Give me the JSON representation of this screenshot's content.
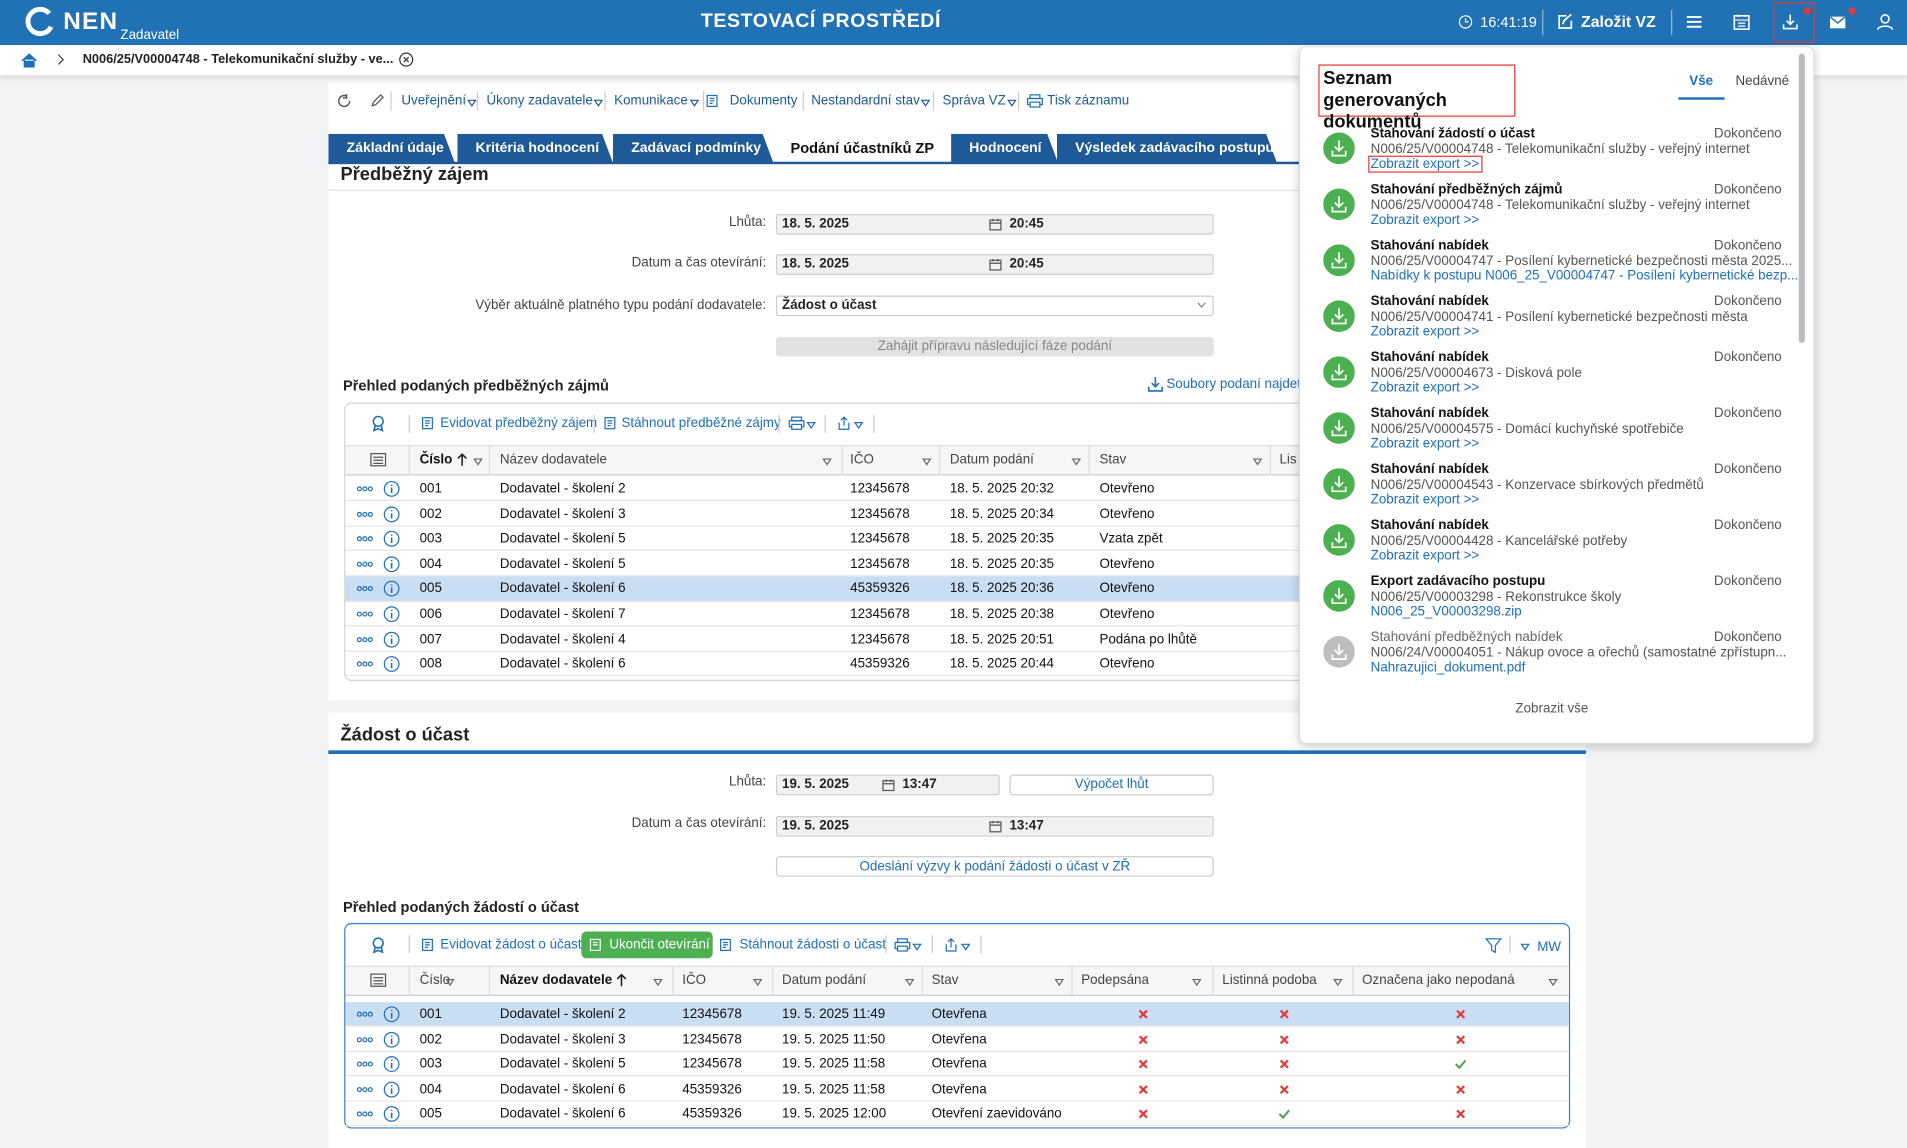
{
  "header": {
    "logo": "NEN",
    "role": "Zadavatel",
    "environment": "TESTOVACÍ PROSTŘEDÍ",
    "time": "16:41:19",
    "create": "Založit VZ"
  },
  "breadcrumb": {
    "item": "N006/25/V00004748 - Telekomunikační služby - ve..."
  },
  "toolbar": [
    "Uveřejnění",
    "Úkony zadavatele",
    "Komunikace",
    "Dokumenty",
    "Nestandardní stav",
    "Správa VZ",
    "Tisk záznamu"
  ],
  "tabs": {
    "items": [
      "Základní údaje",
      "Kritéria hodnocení",
      "Zadávací podmínky",
      "Podání účastníků ZP",
      "Hodnocení",
      "Výsledek zadávacího postupu"
    ],
    "active": 3
  },
  "section1": {
    "title": "Předběžný zájem",
    "fields": [
      {
        "label": "Lhůta:",
        "date": "18. 5. 2025",
        "time": "20:45"
      },
      {
        "label": "Datum a čas otevírání:",
        "date": "18. 5. 2025",
        "time": "20:45"
      }
    ],
    "select_label": "Výběr aktuálně platného typu podání dodavatele:",
    "select_value": "Žádost o účast",
    "button": "Zahájit přípravu následující fáze podání",
    "overview_title": "Přehled podaných předběžných zájmů",
    "files_link": "Soubory podaní najdete",
    "actions": [
      "Evidovat předběžný zájem",
      "Stáhnout předběžné zájmy"
    ],
    "table": {
      "columns": [
        "Číslo",
        "Název dodavatele",
        "IČO",
        "Datum podání",
        "Stav",
        "Lis"
      ],
      "sorted_column": 0,
      "selected_row": 4,
      "rows": [
        [
          "001",
          "Dodavatel - školení 2",
          "12345678",
          "18. 5. 2025 20:32",
          "Otevřeno"
        ],
        [
          "002",
          "Dodavatel - školení 3",
          "12345678",
          "18. 5. 2025 20:34",
          "Otevřeno"
        ],
        [
          "003",
          "Dodavatel - školení 5",
          "12345678",
          "18. 5. 2025 20:35",
          "Vzata zpět"
        ],
        [
          "004",
          "Dodavatel - školení 5",
          "12345678",
          "18. 5. 2025 20:35",
          "Otevřeno"
        ],
        [
          "005",
          "Dodavatel - školení 6",
          "45359326",
          "18. 5. 2025 20:36",
          "Otevřeno"
        ],
        [
          "006",
          "Dodavatel - školení 7",
          "12345678",
          "18. 5. 2025 20:38",
          "Otevřeno"
        ],
        [
          "007",
          "Dodavatel - školení 4",
          "12345678",
          "18. 5. 2025 20:51",
          "Podána po lhůtě"
        ],
        [
          "008",
          "Dodavatel - školení 6",
          "45359326",
          "18. 5. 2025 20:44",
          "Otevřeno"
        ]
      ]
    }
  },
  "section2": {
    "title": "Žádost o účast",
    "fields": [
      {
        "label": "Lhůta:",
        "date": "19. 5. 2025",
        "time": "13:47"
      },
      {
        "label": "Datum a čas otevírání:",
        "date": "19. 5. 2025",
        "time": "13:47"
      }
    ],
    "calc_button": "Výpočet lhůt",
    "send_button": "Odeslání výzvy k podání žádosti o účast v ZŘ",
    "overview_title": "Přehled podaných žádostí o účast",
    "actions": [
      "Evidovat žádost o účast",
      "Ukončit otevírání",
      "Stáhnout žádosti o účast"
    ],
    "user": "MW",
    "table": {
      "columns": [
        "Číslo",
        "Název dodavatele",
        "IČO",
        "Datum podání",
        "Stav",
        "Podepsána",
        "Listinná podoba",
        "Označena jako nepodaná"
      ],
      "sorted_column": 1,
      "selected_row": 0,
      "rows": [
        [
          "001",
          "Dodavatel - školení 2",
          "12345678",
          "19. 5. 2025 11:49",
          "Otevřena"
        ],
        [
          "002",
          "Dodavatel - školení 3",
          "12345678",
          "19. 5. 2025 11:50",
          "Otevřena"
        ],
        [
          "003",
          "Dodavatel - školení 5",
          "12345678",
          "19. 5. 2025 11:58",
          "Otevřena"
        ],
        [
          "004",
          "Dodavatel - školení 6",
          "45359326",
          "19. 5. 2025 11:58",
          "Otevřena"
        ],
        [
          "005",
          "Dodavatel - školení 6",
          "45359326",
          "19. 5. 2025 12:00",
          "Otevření zaevidováno"
        ]
      ],
      "checks": [
        [
          false,
          false,
          false
        ],
        [
          false,
          false,
          false
        ],
        [
          false,
          false,
          true
        ],
        [
          false,
          false,
          false
        ],
        [
          false,
          true,
          false
        ]
      ]
    }
  },
  "panel": {
    "title": "Seznam generovaných dokumentů",
    "tabs": [
      "Vše",
      "Nedávné"
    ],
    "active_tab": 0,
    "items": [
      {
        "title": "Stahování žádostí o účast",
        "status": "Dokončeno",
        "detail": "N006/25/V00004748 - Telekomunikační služby - veřejný internet",
        "link": "Zobrazit export >>",
        "boxed": true
      },
      {
        "title": "Stahování předběžných zájmů",
        "status": "Dokončeno",
        "detail": "N006/25/V00004748 - Telekomunikační služby - veřejný internet",
        "link": "Zobrazit export >>"
      },
      {
        "title": "Stahování nabídek",
        "status": "Dokončeno",
        "detail": "N006/25/V00004747 - Posílení kybernetické bezpečnosti města 2025...",
        "link": "Nabídky k postupu N006_25_V00004747 - Posílení kybernetické bezp..."
      },
      {
        "title": "Stahování nabídek",
        "status": "Dokončeno",
        "detail": "N006/25/V00004741 - Posílení kybernetické bezpečnosti města",
        "link": "Zobrazit export >>"
      },
      {
        "title": "Stahování nabídek",
        "status": "Dokončeno",
        "detail": "N006/25/V00004673 - Disková pole",
        "link": "Zobrazit export >>"
      },
      {
        "title": "Stahování nabídek",
        "status": "Dokončeno",
        "detail": "N006/25/V00004575 - Domácí kuchyňské spotřebiče",
        "link": "Zobrazit export >>"
      },
      {
        "title": "Stahování nabídek",
        "status": "Dokončeno",
        "detail": "N006/25/V00004543 - Konzervace sbírkových předmětů",
        "link": "Zobrazit export >>"
      },
      {
        "title": "Stahování nabídek",
        "status": "Dokončeno",
        "detail": "N006/25/V00004428 - Kancelářské potřeby",
        "link": "Zobrazit export >>"
      },
      {
        "title": "Export zadávacího postupu",
        "status": "Dokončeno",
        "detail": "N006/25/V00003298 - Rekonstrukce školy",
        "link": "N006_25_V00003298.zip"
      },
      {
        "title": "Stahování předběžných nabídek",
        "status": "Dokončeno",
        "detail": "N006/24/V00004051 - Nákup ovoce a ořechů (samostatné zpřístupn...",
        "link": "Nahrazujici_dokument.pdf",
        "grayed": true
      }
    ],
    "footer": "Zobrazit vše"
  }
}
